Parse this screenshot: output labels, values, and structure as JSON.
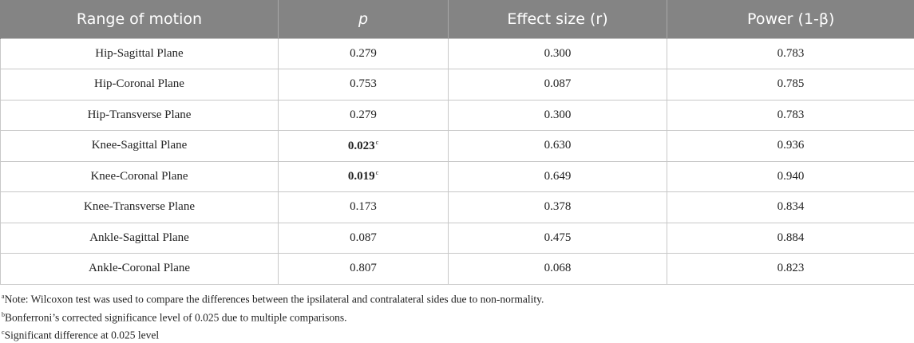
{
  "table": {
    "headers": [
      "Range of motion",
      "p",
      "Effect size (r)",
      "Power (1-β)"
    ],
    "rows": [
      {
        "motion": "Hip-Sagittal Plane",
        "p": "0.279",
        "p_mark": "",
        "effect": "0.300",
        "power": "0.783"
      },
      {
        "motion": "Hip-Coronal Plane",
        "p": "0.753",
        "p_mark": "",
        "effect": "0.087",
        "power": "0.785"
      },
      {
        "motion": "Hip-Transverse Plane",
        "p": "0.279",
        "p_mark": "",
        "effect": "0.300",
        "power": "0.783"
      },
      {
        "motion": "Knee-Sagittal Plane",
        "p": "0.023",
        "p_mark": "c",
        "effect": "0.630",
        "power": "0.936"
      },
      {
        "motion": "Knee-Coronal Plane",
        "p": "0.019",
        "p_mark": "c",
        "effect": "0.649",
        "power": "0.940"
      },
      {
        "motion": "Knee-Transverse Plane",
        "p": "0.173",
        "p_mark": "",
        "effect": "0.378",
        "power": "0.834"
      },
      {
        "motion": "Ankle-Sagittal Plane",
        "p": "0.087",
        "p_mark": "",
        "effect": "0.475",
        "power": "0.884"
      },
      {
        "motion": "Ankle-Coronal Plane",
        "p": "0.807",
        "p_mark": "",
        "effect": "0.068",
        "power": "0.823"
      }
    ]
  },
  "notes": [
    {
      "mark": "a",
      "text": "Note: Wilcoxon test was used to compare the differences between the ipsilateral and contralateral sides due to non-normality."
    },
    {
      "mark": "b",
      "text": "Bonferroni’s corrected significance level of 0.025 due to multiple comparisons."
    },
    {
      "mark": "c",
      "text": "Significant difference at 0.025 level"
    }
  ],
  "colors": {
    "header_bg": "#848484",
    "header_text": "#ffffff",
    "grid": "#c8c8c8"
  }
}
